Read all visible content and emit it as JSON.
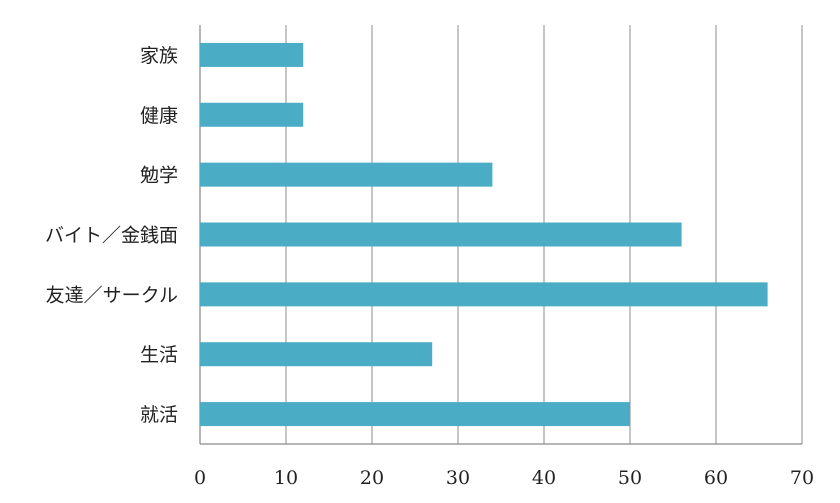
{
  "chart_data": {
    "type": "bar",
    "orientation": "horizontal",
    "categories": [
      "家族",
      "健康",
      "勉学",
      "バイト／金銭面",
      "友達／サークル",
      "生活",
      "就活"
    ],
    "values": [
      12,
      12,
      34,
      56,
      66,
      27,
      50
    ],
    "title": "",
    "xlabel": "",
    "ylabel": "",
    "xlim": [
      0,
      70
    ],
    "xticks": [
      "0",
      "10",
      "20",
      "30",
      "40",
      "50",
      "60",
      "70"
    ],
    "grid": "vertical",
    "legend": "none",
    "bar_color": "#4bacc6",
    "grid_color": "#8c8c8c"
  }
}
